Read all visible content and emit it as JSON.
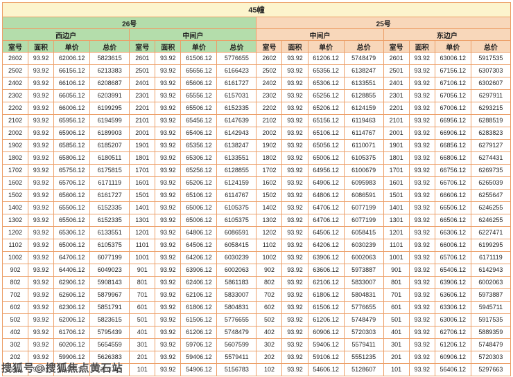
{
  "title": "45幢",
  "watermark": "搜狐号@搜狐焦点黄石站",
  "buildings": [
    {
      "name": "26号",
      "units": [
        "西边户",
        "中间户"
      ]
    },
    {
      "name": "25号",
      "units": [
        "中间户",
        "东边户"
      ]
    }
  ],
  "columns": [
    "室号",
    "面积",
    "单价",
    "总价"
  ],
  "colors": {
    "border": "#ec9f68",
    "title_bg": "#fcf4cd",
    "green_bg": "#b4ddab",
    "peach_bg": "#f8d7ba"
  },
  "rows": [
    [
      "2602",
      "93.92",
      "62006.12",
      "5823615",
      "2601",
      "93.92",
      "61506.12",
      "5776655",
      "2602",
      "93.92",
      "61206.12",
      "5748479",
      "2601",
      "93.92",
      "63006.12",
      "5917535"
    ],
    [
      "2502",
      "93.92",
      "66156.12",
      "6213383",
      "2501",
      "93.92",
      "65656.12",
      "6166423",
      "2502",
      "93.92",
      "65356.12",
      "6138247",
      "2501",
      "93.92",
      "67156.12",
      "6307303"
    ],
    [
      "2402",
      "93.92",
      "66106.12",
      "6208687",
      "2401",
      "93.92",
      "65606.12",
      "6161727",
      "2402",
      "93.92",
      "65306.12",
      "6133551",
      "2401",
      "93.92",
      "67106.12",
      "6302607"
    ],
    [
      "2302",
      "93.92",
      "66056.12",
      "6203991",
      "2301",
      "93.92",
      "65556.12",
      "6157031",
      "2302",
      "93.92",
      "65256.12",
      "6128855",
      "2301",
      "93.92",
      "67056.12",
      "6297911"
    ],
    [
      "2202",
      "93.92",
      "66006.12",
      "6199295",
      "2201",
      "93.92",
      "65506.12",
      "6152335",
      "2202",
      "93.92",
      "65206.12",
      "6124159",
      "2201",
      "93.92",
      "67006.12",
      "6293215"
    ],
    [
      "2102",
      "93.92",
      "65956.12",
      "6194599",
      "2101",
      "93.92",
      "65456.12",
      "6147639",
      "2102",
      "93.92",
      "65156.12",
      "6119463",
      "2101",
      "93.92",
      "66956.12",
      "6288519"
    ],
    [
      "2002",
      "93.92",
      "65906.12",
      "6189903",
      "2001",
      "93.92",
      "65406.12",
      "6142943",
      "2002",
      "93.92",
      "65106.12",
      "6114767",
      "2001",
      "93.92",
      "66906.12",
      "6283823"
    ],
    [
      "1902",
      "93.92",
      "65856.12",
      "6185207",
      "1901",
      "93.92",
      "65356.12",
      "6138247",
      "1902",
      "93.92",
      "65056.12",
      "6110071",
      "1901",
      "93.92",
      "66856.12",
      "6279127"
    ],
    [
      "1802",
      "93.92",
      "65806.12",
      "6180511",
      "1801",
      "93.92",
      "65306.12",
      "6133551",
      "1802",
      "93.92",
      "65006.12",
      "6105375",
      "1801",
      "93.92",
      "66806.12",
      "6274431"
    ],
    [
      "1702",
      "93.92",
      "65756.12",
      "6175815",
      "1701",
      "93.92",
      "65256.12",
      "6128855",
      "1702",
      "93.92",
      "64956.12",
      "6100679",
      "1701",
      "93.92",
      "66756.12",
      "6269735"
    ],
    [
      "1602",
      "93.92",
      "65706.12",
      "6171119",
      "1601",
      "93.92",
      "65206.12",
      "6124159",
      "1602",
      "93.92",
      "64906.12",
      "6095983",
      "1601",
      "93.92",
      "66706.12",
      "6265039"
    ],
    [
      "1502",
      "93.92",
      "65606.12",
      "6161727",
      "1501",
      "93.92",
      "65106.12",
      "6114767",
      "1502",
      "93.92",
      "64806.12",
      "6086591",
      "1501",
      "93.92",
      "66606.12",
      "6255647"
    ],
    [
      "1402",
      "93.92",
      "65506.12",
      "6152335",
      "1401",
      "93.92",
      "65006.12",
      "6105375",
      "1402",
      "93.92",
      "64706.12",
      "6077199",
      "1401",
      "93.92",
      "66506.12",
      "6246255"
    ],
    [
      "1302",
      "93.92",
      "65506.12",
      "6152335",
      "1301",
      "93.92",
      "65006.12",
      "6105375",
      "1302",
      "93.92",
      "64706.12",
      "6077199",
      "1301",
      "93.92",
      "66506.12",
      "6246255"
    ],
    [
      "1202",
      "93.92",
      "65306.12",
      "6133551",
      "1201",
      "93.92",
      "64806.12",
      "6086591",
      "1202",
      "93.92",
      "64506.12",
      "6058415",
      "1201",
      "93.92",
      "66306.12",
      "6227471"
    ],
    [
      "1102",
      "93.92",
      "65006.12",
      "6105375",
      "1101",
      "93.92",
      "64506.12",
      "6058415",
      "1102",
      "93.92",
      "64206.12",
      "6030239",
      "1101",
      "93.92",
      "66006.12",
      "6199295"
    ],
    [
      "1002",
      "93.92",
      "64706.12",
      "6077199",
      "1001",
      "93.92",
      "64206.12",
      "6030239",
      "1002",
      "93.92",
      "63906.12",
      "6002063",
      "1001",
      "93.92",
      "65706.12",
      "6171119"
    ],
    [
      "902",
      "93.92",
      "64406.12",
      "6049023",
      "901",
      "93.92",
      "63906.12",
      "6002063",
      "902",
      "93.92",
      "63606.12",
      "5973887",
      "901",
      "93.92",
      "65406.12",
      "6142943"
    ],
    [
      "802",
      "93.92",
      "62906.12",
      "5908143",
      "801",
      "93.92",
      "62406.12",
      "5861183",
      "802",
      "93.92",
      "62106.12",
      "5833007",
      "801",
      "93.92",
      "63906.12",
      "6002063"
    ],
    [
      "702",
      "93.92",
      "62606.12",
      "5879967",
      "701",
      "93.92",
      "62106.12",
      "5833007",
      "702",
      "93.92",
      "61806.12",
      "5804831",
      "701",
      "93.92",
      "63606.12",
      "5973887"
    ],
    [
      "602",
      "93.92",
      "62306.12",
      "5851791",
      "601",
      "93.92",
      "61806.12",
      "5804831",
      "602",
      "93.92",
      "61506.12",
      "5776655",
      "601",
      "93.92",
      "63306.12",
      "5945711"
    ],
    [
      "502",
      "93.92",
      "62006.12",
      "5823615",
      "501",
      "93.92",
      "61506.12",
      "5776655",
      "502",
      "93.92",
      "61206.12",
      "5748479",
      "501",
      "93.92",
      "63006.12",
      "5917535"
    ],
    [
      "402",
      "93.92",
      "61706.12",
      "5795439",
      "401",
      "93.92",
      "61206.12",
      "5748479",
      "402",
      "93.92",
      "60906.12",
      "5720303",
      "401",
      "93.92",
      "62706.12",
      "5889359"
    ],
    [
      "302",
      "93.92",
      "60206.12",
      "5654559",
      "301",
      "93.92",
      "59706.12",
      "5607599",
      "302",
      "93.92",
      "59406.12",
      "5579411",
      "301",
      "93.92",
      "61206.12",
      "5748479"
    ],
    [
      "202",
      "93.92",
      "59906.12",
      "5626383",
      "201",
      "93.92",
      "59406.12",
      "5579411",
      "202",
      "93.92",
      "59106.12",
      "5551235",
      "201",
      "93.92",
      "60906.12",
      "5720303"
    ],
    [
      "102",
      "93.92",
      "55406.12",
      "5203743",
      "101",
      "93.92",
      "54906.12",
      "5156783",
      "102",
      "93.92",
      "54606.12",
      "5128607",
      "101",
      "93.92",
      "56406.12",
      "5297663"
    ]
  ]
}
